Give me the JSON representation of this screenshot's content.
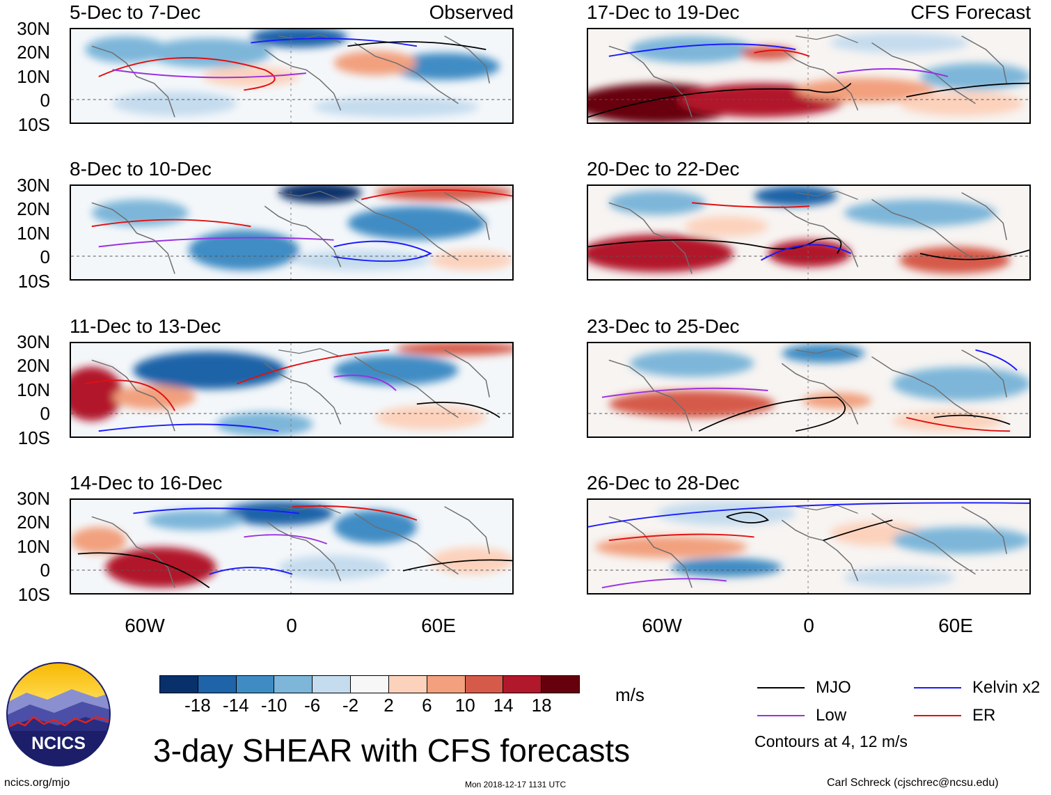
{
  "source_label_observed": "Observed",
  "source_label_forecast": "CFS Forecast",
  "lat_ticks": [
    "30N",
    "20N",
    "10N",
    "0",
    "10S"
  ],
  "lon_ticks": [
    "60W",
    "0",
    "60E"
  ],
  "panels_left": [
    {
      "title": "5-Dec to 7-Dec"
    },
    {
      "title": "8-Dec to 10-Dec"
    },
    {
      "title": "11-Dec to 13-Dec"
    },
    {
      "title": "14-Dec to 16-Dec"
    }
  ],
  "panels_right": [
    {
      "title": "17-Dec to 19-Dec"
    },
    {
      "title": "20-Dec to 22-Dec"
    },
    {
      "title": "23-Dec to 25-Dec"
    },
    {
      "title": "26-Dec to 28-Dec"
    }
  ],
  "colorbar": {
    "labels": [
      "-18",
      "-14",
      "-10",
      "-6",
      "-2",
      "2",
      "6",
      "10",
      "14",
      "18"
    ],
    "colors": [
      "#08306b",
      "#1f63a8",
      "#3f8cc4",
      "#7db6d9",
      "#c4dcee",
      "#f7f7f7",
      "#fcd2bc",
      "#f2a07e",
      "#d65a4a",
      "#b2182b",
      "#67000d"
    ],
    "units": "m/s"
  },
  "legend": {
    "mjo": "MJO",
    "kelvin": "Kelvin x2",
    "low": "Low",
    "er": "ER",
    "mjo_color": "#000000",
    "kelvin_color": "#1a1aff",
    "low_color": "#9b30e0",
    "er_color": "#e01010",
    "note": "Contours at 4, 12 m/s"
  },
  "main_title": "3-day SHEAR with CFS forecasts",
  "logo_text": "NCICS",
  "footer_left": "ncics.org/mjo",
  "footer_center": "Mon 2018-12-17 1131 UTC",
  "footer_right": "Carl Schreck (cjschrec@ncsu.edu)"
}
